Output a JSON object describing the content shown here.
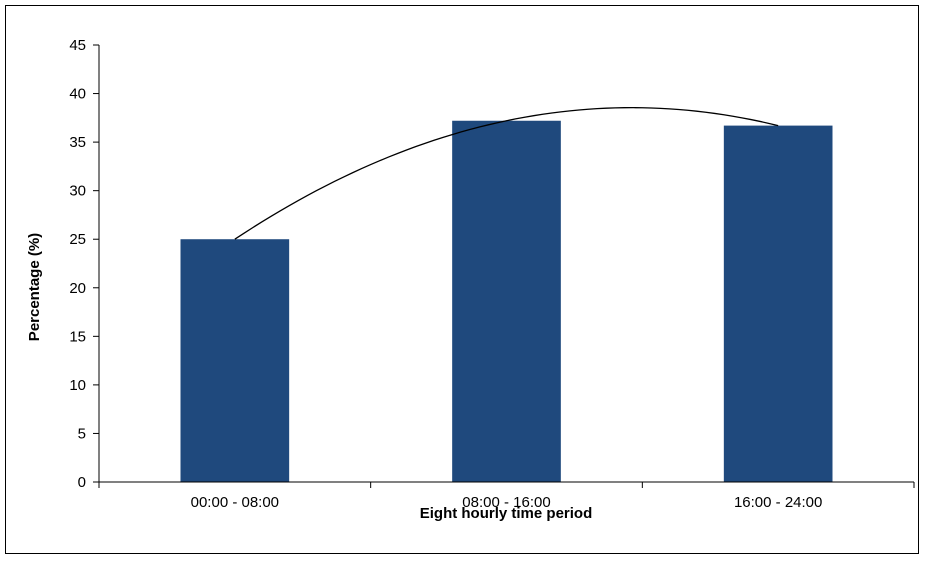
{
  "chart_data": {
    "type": "bar",
    "categories": [
      "00:00 - 08:00",
      "08:00 - 16:00",
      "16:00 - 24:00"
    ],
    "values": [
      25.0,
      37.2,
      36.7
    ],
    "xlabel": "Eight hourly time period",
    "ylabel": "Percentage (%)",
    "ylim": [
      0,
      45
    ],
    "yticks": [
      0,
      5,
      10,
      15,
      20,
      25,
      30,
      35,
      40,
      45
    ],
    "grid": false,
    "legend": "none",
    "bar_color": "#1F497D",
    "trendline": {
      "type": "polynomial",
      "x": [
        "00:00 - 08:00",
        "08:00 - 16:00",
        "16:00 - 24:00"
      ],
      "y": [
        25.0,
        37.2,
        36.7
      ],
      "color": "#000000"
    }
  }
}
